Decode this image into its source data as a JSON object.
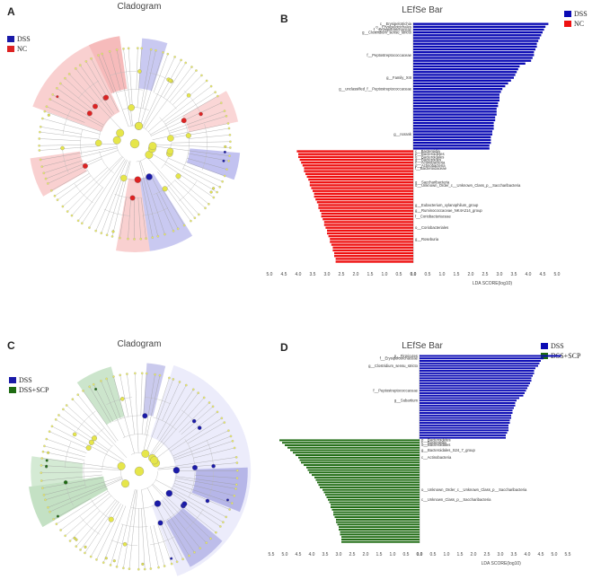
{
  "panels": {
    "A": {
      "letter": "A",
      "title": "Cladogram",
      "legend": [
        {
          "name": "DSS",
          "color": "#1a1aa8"
        },
        {
          "name": "NC",
          "color": "#dd2222"
        }
      ]
    },
    "B": {
      "letter": "B",
      "title": "LEfSe Bar",
      "legend": [
        {
          "name": "DSS",
          "color": "#1a1aa8"
        },
        {
          "name": "NC",
          "color": "#dd2222"
        }
      ]
    },
    "C": {
      "letter": "C",
      "title": "Cladogram",
      "legend": [
        {
          "name": "DSS",
          "color": "#1a1aa8"
        },
        {
          "name": "DSS+SCP",
          "color": "#1e6b12"
        }
      ]
    },
    "D": {
      "letter": "D",
      "title": "LEfSe Bar",
      "legend": [
        {
          "name": "DSS",
          "color": "#0a0ab4"
        },
        {
          "name": "DSS+SCP",
          "color": "#1e6b12"
        }
      ]
    }
  },
  "chart_data": [
    {
      "type": "bar",
      "title": "LEfSe Bar",
      "xlabel": "LDA SCORE(log10)",
      "xlim": [
        -5,
        5
      ],
      "xticks": [
        "5.0",
        "4.5",
        "4.0",
        "3.5",
        "3.0",
        "2.5",
        "2.0",
        "1.5",
        "1.0",
        "0.5",
        "0.0",
        "0.5",
        "1.0",
        "1.5",
        "2.0",
        "2.5",
        "3.0",
        "3.5",
        "4.0",
        "4.5",
        "5.0"
      ],
      "series": [
        {
          "name": "DSS",
          "color": "#0a0ab4",
          "values": [
            4.7,
            4.6,
            4.55,
            4.5,
            4.45,
            4.4,
            4.35,
            4.3,
            4.3,
            4.25,
            4.2,
            4.2,
            4.15,
            4.1,
            3.9,
            3.7,
            3.65,
            3.6,
            3.55,
            3.5,
            3.4,
            3.3,
            3.2,
            3.1,
            3.05,
            3.0,
            3.0,
            3.0,
            2.95,
            2.95,
            2.9,
            2.9,
            2.9,
            2.85,
            2.85,
            2.8,
            2.8,
            2.8,
            2.75,
            2.75,
            2.7,
            2.7,
            2.7,
            2.65,
            2.65
          ],
          "labels": [
            "c__Erysipelotrichia",
            "o__Erysipelotrichales",
            "f__Erysipelotrichaceae",
            "g__Clostridium_sensu_stricto",
            "",
            "",
            "",
            "",
            "",
            "",
            "",
            "f__Peptostreptococcaceae",
            "",
            "",
            "",
            "",
            "",
            "",
            "",
            "g__Family_XIII",
            "",
            "",
            "",
            "g__unclassified_f__Peptostreptococcaceae",
            "",
            "",
            "",
            "",
            "",
            "",
            "",
            "",
            "",
            "",
            "",
            "",
            "",
            "",
            "",
            "g__norank",
            "",
            "",
            "",
            "",
            ""
          ]
        },
        {
          "name": "NC",
          "color": "#ee1111",
          "values": [
            -4.05,
            -4.0,
            -4.0,
            -3.95,
            -3.9,
            -3.85,
            -3.8,
            -3.8,
            -3.75,
            -3.7,
            -3.65,
            -3.6,
            -3.6,
            -3.55,
            -3.5,
            -3.45,
            -3.45,
            -3.4,
            -3.35,
            -3.3,
            -3.3,
            -3.25,
            -3.2,
            -3.2,
            -3.15,
            -3.1,
            -3.1,
            -3.05,
            -3.0,
            -3.0,
            -2.95,
            -2.9,
            -2.9,
            -2.85,
            -2.8,
            -2.8,
            -2.75,
            -2.75,
            -2.7,
            -2.7
          ],
          "labels": [
            "c__Bacteroidia",
            "p__Bacteroidetes",
            "o__Bacteroidales",
            "g__Bacteroides",
            "c__Actinobacteria",
            "p__Actinobacteria",
            "f__Bacteroidaceae",
            "",
            "",
            "",
            "",
            "g__Saccharibacteria",
            "o__Unknown_Order_c__Unknown_Class_p__Saccharibacteria",
            "",
            "",
            "",
            "",
            "",
            "",
            "g__Eubacterium_xylanophilum_group",
            "",
            "g__Ruminococcaceae_NK4A214_group",
            "",
            "f__Coriobacteriaceae",
            "",
            "",
            "",
            "o__Coriobacteriales",
            "",
            "",
            "",
            "g__Roseburia",
            "",
            "",
            "",
            "",
            "",
            "",
            "",
            ""
          ]
        }
      ]
    },
    {
      "type": "bar",
      "title": "LEfSe Bar",
      "xlabel": "LDA SCORE(log10)",
      "xlim": [
        -5.5,
        5.5
      ],
      "xticks": [
        "5.5",
        "5.0",
        "4.5",
        "4.0",
        "3.5",
        "3.0",
        "2.5",
        "2.0",
        "1.5",
        "1.0",
        "0.5",
        "0.0",
        "0.5",
        "1.0",
        "1.5",
        "2.0",
        "2.5",
        "3.0",
        "3.5",
        "4.0",
        "4.5",
        "5.0",
        "5.5"
      ],
      "series": [
        {
          "name": "DSS",
          "color": "#0a0ab4",
          "values": [
            5.25,
            4.6,
            4.5,
            4.45,
            4.4,
            4.3,
            4.25,
            4.25,
            4.2,
            4.15,
            4.15,
            4.1,
            4.05,
            4.0,
            3.95,
            3.9,
            3.85,
            3.7,
            3.6,
            3.55,
            3.55,
            3.5,
            3.45,
            3.45,
            3.4,
            3.4,
            3.35,
            3.35,
            3.3,
            3.3,
            3.3,
            3.25,
            3.2,
            3.2
          ],
          "labels": [
            "p__Firmicutes",
            "f__Erysipelotrichaceae",
            "",
            "",
            "g__Clostridium_sensu_stricto",
            "",
            "",
            "",
            "",
            "",
            "",
            "",
            "",
            "",
            "f__Peptostreptococcaceae",
            "",
            "",
            "",
            "g__Subartium",
            "",
            "",
            "",
            "",
            "",
            "",
            "",
            "",
            "",
            "",
            "",
            "",
            "",
            "",
            ""
          ]
        },
        {
          "name": "DSS+SCP",
          "color": "#1e6b12",
          "values": [
            -5.2,
            -5.1,
            -5.0,
            -4.9,
            -4.8,
            -4.7,
            -4.6,
            -4.5,
            -4.45,
            -4.4,
            -4.3,
            -4.2,
            -4.15,
            -4.1,
            -4.0,
            -3.9,
            -3.85,
            -3.8,
            -3.75,
            -3.7,
            -3.6,
            -3.55,
            -3.5,
            -3.45,
            -3.4,
            -3.35,
            -3.3,
            -3.3,
            -3.25,
            -3.2,
            -3.2,
            -3.15,
            -3.1,
            -3.1,
            -3.05,
            -3.0,
            -3.0,
            -2.95,
            -2.95,
            -2.9,
            -2.9,
            -2.9
          ],
          "labels": [
            "p__Bacteroidetes",
            "c__Bacteroidia",
            "o__Bacteroidales",
            "",
            "g__Bacteroidales_S24_7_group",
            "",
            "",
            "c__Actinobacteria",
            "",
            "",
            "",
            "",
            "",
            "",
            "",
            "",
            "",
            "",
            "",
            "",
            "o__Unknown_Order_c__Unknown_Class_p__Saccharibacteria",
            "",
            "",
            "",
            "c__Unknown_Class_p__Saccharibacteria",
            "",
            "",
            "",
            "",
            "",
            "",
            "",
            "",
            "",
            "",
            "",
            "",
            "",
            "",
            "",
            "",
            ""
          ]
        }
      ]
    }
  ]
}
